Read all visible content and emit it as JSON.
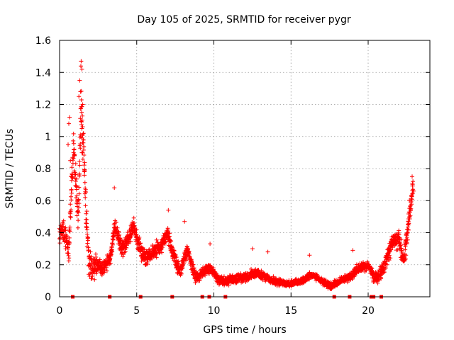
{
  "chart_data": {
    "type": "scatter",
    "title": "Day 105 of 2025, SRMTID for receiver pygr",
    "xlabel": "GPS time / hours",
    "ylabel": "SRMTID / TECUs",
    "xlim": [
      0,
      24
    ],
    "ylim": [
      0,
      1.6
    ],
    "xticks": [
      0,
      5,
      10,
      15,
      20
    ],
    "yticks": [
      0,
      0.2,
      0.4,
      0.6,
      0.8,
      1,
      1.2,
      1.4,
      1.6
    ],
    "xtick_labels": [
      "0",
      "5",
      "10",
      "15",
      "20"
    ],
    "ytick_labels": [
      "0",
      "0.2",
      "0.4",
      "0.6",
      "0.8",
      "1",
      "1.2",
      "1.4",
      "1.6"
    ],
    "grid": true,
    "marker": "+",
    "color": "#ff0000",
    "envelope": {
      "x": [
        0.0,
        0.3,
        0.6,
        0.9,
        1.2,
        1.4,
        1.6,
        1.9,
        2.3,
        2.8,
        3.3,
        3.6,
        4.0,
        4.4,
        4.8,
        5.2,
        5.6,
        6.0,
        6.5,
        7.0,
        7.4,
        7.8,
        8.3,
        8.8,
        9.3,
        9.8,
        10.4,
        11.0,
        11.6,
        12.2,
        12.8,
        13.4,
        14.0,
        14.6,
        15.2,
        15.8,
        16.4,
        17.0,
        17.6,
        18.2,
        18.8,
        19.4,
        20.0,
        20.4,
        20.8,
        21.2,
        21.6,
        22.0,
        22.3,
        22.6,
        22.9
      ],
      "y": [
        0.4,
        0.38,
        0.3,
        0.95,
        0.45,
        1.2,
        0.8,
        0.2,
        0.2,
        0.17,
        0.25,
        0.45,
        0.3,
        0.35,
        0.45,
        0.3,
        0.22,
        0.28,
        0.3,
        0.4,
        0.25,
        0.15,
        0.3,
        0.12,
        0.15,
        0.18,
        0.1,
        0.1,
        0.12,
        0.13,
        0.15,
        0.12,
        0.1,
        0.08,
        0.09,
        0.1,
        0.14,
        0.1,
        0.07,
        0.1,
        0.12,
        0.18,
        0.2,
        0.12,
        0.14,
        0.22,
        0.35,
        0.38,
        0.18,
        0.45,
        0.65
      ]
    },
    "spread": {
      "x": [
        0.0,
        1.0,
        1.6,
        2.5,
        4.0,
        6.0,
        7.5,
        9.0,
        12.0,
        15.0,
        18.0,
        20.0,
        21.5,
        22.5,
        23.0
      ],
      "y": [
        0.08,
        0.15,
        0.22,
        0.06,
        0.08,
        0.08,
        0.07,
        0.05,
        0.04,
        0.03,
        0.03,
        0.05,
        0.09,
        0.12,
        0.1
      ]
    },
    "sample_step_hours": 0.0167,
    "spike_points": [
      {
        "x": 1.4,
        "y": 1.47
      },
      {
        "x": 1.38,
        "y": 1.44
      },
      {
        "x": 1.45,
        "y": 1.42
      },
      {
        "x": 1.3,
        "y": 1.35
      },
      {
        "x": 1.35,
        "y": 1.28
      },
      {
        "x": 1.25,
        "y": 1.25
      },
      {
        "x": 1.5,
        "y": 1.2
      },
      {
        "x": 1.43,
        "y": 1.15
      },
      {
        "x": 0.65,
        "y": 1.12
      },
      {
        "x": 0.6,
        "y": 1.08
      },
      {
        "x": 1.55,
        "y": 1.02
      },
      {
        "x": 0.55,
        "y": 0.95
      },
      {
        "x": 1.45,
        "y": 0.9
      },
      {
        "x": 0.7,
        "y": 0.85
      },
      {
        "x": 1.6,
        "y": 0.78
      },
      {
        "x": 0.75,
        "y": 0.75
      },
      {
        "x": 22.85,
        "y": 0.75
      },
      {
        "x": 22.9,
        "y": 0.72
      },
      {
        "x": 3.55,
        "y": 0.68
      },
      {
        "x": 22.95,
        "y": 0.66
      },
      {
        "x": 7.05,
        "y": 0.54
      },
      {
        "x": 8.1,
        "y": 0.47
      },
      {
        "x": 9.75,
        "y": 0.33
      },
      {
        "x": 12.5,
        "y": 0.3
      },
      {
        "x": 13.5,
        "y": 0.28
      },
      {
        "x": 16.2,
        "y": 0.26
      },
      {
        "x": 19.0,
        "y": 0.29
      }
    ],
    "zero_markers": [
      0.85,
      3.25,
      5.25,
      7.3,
      9.25,
      9.7,
      10.75,
      17.8,
      18.8,
      20.2,
      20.35,
      20.85
    ]
  }
}
